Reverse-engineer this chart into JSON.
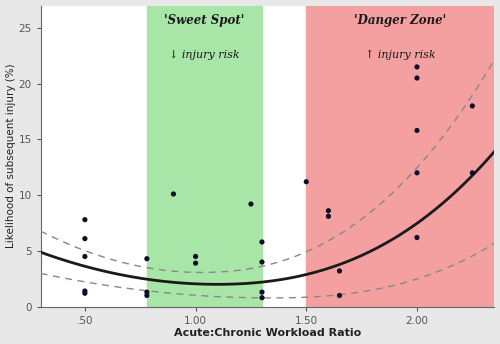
{
  "title": "",
  "xlabel": "Acute:Chronic Workload Ratio",
  "ylabel": "Likelihood of subsequent injury (%)",
  "xlim": [
    0.3,
    2.35
  ],
  "ylim": [
    0,
    27
  ],
  "xticks": [
    0.5,
    1.0,
    1.5,
    2.0
  ],
  "xtick_labels": [
    ".50",
    "1.00",
    "1.50",
    "2.00"
  ],
  "yticks": [
    0,
    5,
    10,
    15,
    20,
    25
  ],
  "ytick_labels": [
    "0",
    "5",
    "10",
    "15",
    "20",
    "25"
  ],
  "sweet_spot_xmin": 0.78,
  "sweet_spot_xmax": 1.3,
  "danger_zone_xmin": 1.5,
  "danger_zone_xmax": 2.35,
  "sweet_spot_color": "#a8e6a8",
  "danger_zone_color": "#f4a0a0",
  "sweet_spot_label": "'Sweet Spot'",
  "sweet_spot_sublabel": "↓ injury risk",
  "danger_zone_label": "'Danger Zone'",
  "danger_zone_sublabel": "↑ injury risk",
  "scatter_points": [
    [
      0.5,
      7.8
    ],
    [
      0.5,
      6.1
    ],
    [
      0.5,
      4.5
    ],
    [
      0.5,
      1.4
    ],
    [
      0.5,
      1.2
    ],
    [
      0.78,
      4.3
    ],
    [
      0.78,
      1.3
    ],
    [
      0.78,
      1.0
    ],
    [
      0.9,
      10.1
    ],
    [
      1.0,
      4.5
    ],
    [
      1.0,
      3.9
    ],
    [
      1.25,
      9.2
    ],
    [
      1.3,
      5.8
    ],
    [
      1.3,
      4.0
    ],
    [
      1.3,
      1.3
    ],
    [
      1.3,
      0.8
    ],
    [
      1.5,
      11.2
    ],
    [
      1.6,
      8.6
    ],
    [
      1.6,
      8.1
    ],
    [
      1.65,
      3.2
    ],
    [
      1.65,
      1.0
    ],
    [
      2.0,
      21.5
    ],
    [
      2.0,
      20.5
    ],
    [
      2.0,
      15.8
    ],
    [
      2.0,
      12.0
    ],
    [
      2.0,
      6.2
    ],
    [
      2.25,
      18.0
    ],
    [
      2.25,
      12.0
    ]
  ],
  "curve_color": "#1a1a1a",
  "ci_color": "#888888",
  "fig_bg": "#e8e8e8",
  "plot_bg": "#ffffff"
}
